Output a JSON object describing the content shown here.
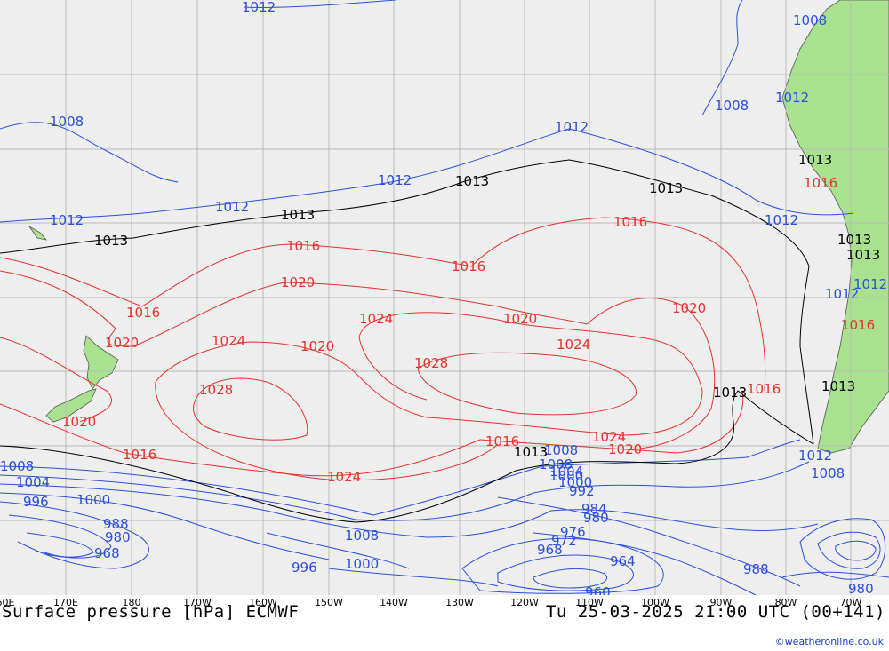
{
  "title": "Surface pressure [hPa] ECMWF",
  "valid_time": "Tu 25-03-2025 21:00 UTC (00+141)",
  "credit": "©weatheronline.co.uk",
  "colors": {
    "ocean": "#eeeeee",
    "land": "#a8e28e",
    "grid": "#b9b9b9",
    "low": "#2a4fe0",
    "high": "#e8322c",
    "standard": "#000000"
  },
  "longitude_labels": [
    "60E",
    "170E",
    "180",
    "170W",
    "160W",
    "150W",
    "140W",
    "130W",
    "120W",
    "110W",
    "100W",
    "90W",
    "80W",
    "70W"
  ],
  "isobar_labels": {
    "blue": [
      "1012",
      "1008",
      "1012",
      "1012",
      "1012",
      "1012",
      "1012",
      "1008",
      "1008",
      "1012",
      "1012",
      "1012",
      "1008",
      "1012",
      "1008",
      "1008",
      "1004",
      "1000",
      "996",
      "1000",
      "988",
      "980",
      "968",
      "1008",
      "1000",
      "996",
      "1008",
      "1004",
      "1000",
      "992",
      "984",
      "980",
      "976",
      "972",
      "968",
      "964",
      "960",
      "988",
      "980"
    ],
    "red": [
      "1016",
      "1016",
      "1020",
      "1016",
      "1016",
      "1020",
      "1024",
      "1024",
      "1020",
      "1028",
      "1028",
      "1020",
      "1024",
      "1020",
      "1016",
      "1016",
      "1020",
      "1016",
      "1024",
      "1020",
      "1016",
      "1024",
      "1016"
    ],
    "black": [
      "1013",
      "1013",
      "1013",
      "1013",
      "1013",
      "1013",
      "1013",
      "1013",
      "1013",
      "1013"
    ]
  }
}
